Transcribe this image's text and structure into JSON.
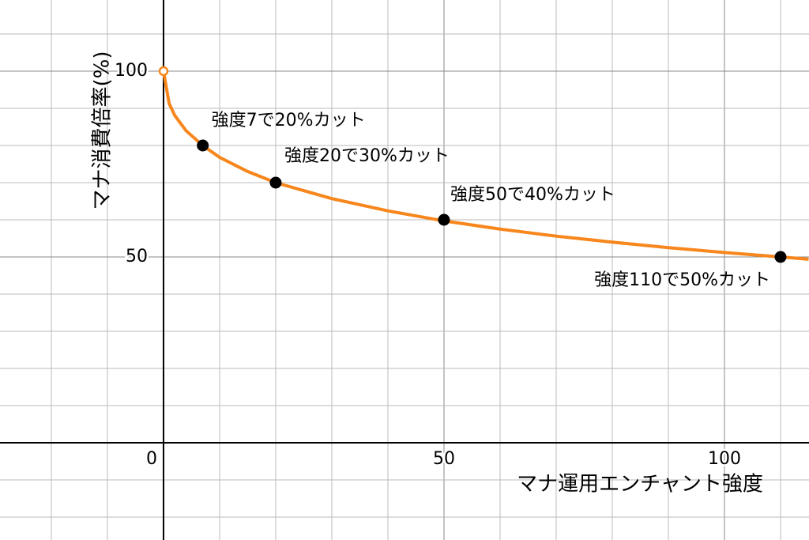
{
  "chart_data": {
    "type": "line",
    "xlabel": "マナ運用エンチャント強度",
    "ylabel": "マナ消費倍率(%)",
    "xlim": [
      -29.15,
      115.07
    ],
    "ylim": [
      -26.17,
      119.15
    ],
    "xticks": [
      0,
      50,
      100
    ],
    "yticks": [
      50,
      100
    ],
    "xgrid": [
      -20,
      -10,
      0,
      10,
      20,
      30,
      40,
      50,
      60,
      70,
      80,
      90,
      100,
      110
    ],
    "ygrid": [
      -20,
      -10,
      0,
      10,
      20,
      30,
      40,
      50,
      60,
      70,
      80,
      90,
      100,
      110
    ],
    "grid": true,
    "curve": {
      "color": "#f7861c",
      "x": [
        0,
        1,
        2,
        4,
        7,
        10,
        15,
        20,
        30,
        40,
        50,
        60,
        70,
        80,
        90,
        100,
        110,
        115
      ],
      "values": [
        100,
        91.3,
        88.1,
        84.0,
        80,
        76.8,
        73.0,
        70,
        65.7,
        62.4,
        59.7,
        57.5,
        55.6,
        54.0,
        52.5,
        51.2,
        50,
        49.4
      ]
    },
    "points": {
      "color": "#000000",
      "x": [
        7,
        20,
        50,
        110
      ],
      "values": [
        80,
        70,
        60,
        50
      ],
      "labels": [
        "強度7で20%カット",
        "強度20で30%カット",
        "強度50で40%カット",
        "強度110で50%カット"
      ]
    }
  }
}
